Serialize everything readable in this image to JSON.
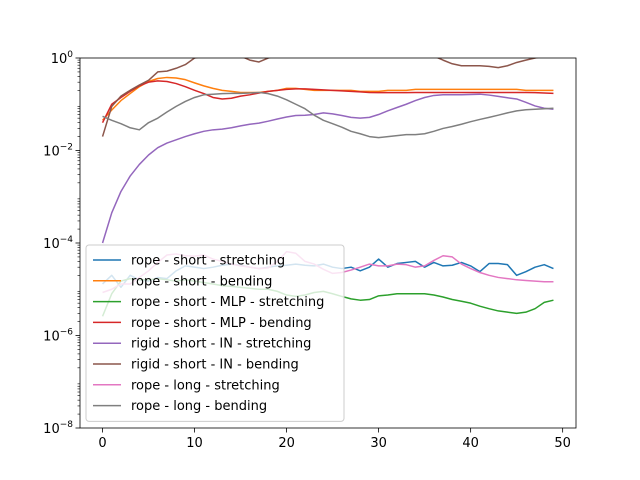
{
  "chart_data": {
    "type": "line",
    "title": "",
    "xlabel": "",
    "ylabel": "",
    "xlim": [
      -2.45,
      51.45
    ],
    "ylim": [
      1e-08,
      1
    ],
    "yscale": "log",
    "grid": false,
    "legend_position": "lower-left",
    "x_ticks": [
      0,
      10,
      20,
      30,
      40,
      50
    ],
    "x_tick_labels": [
      "0",
      "10",
      "20",
      "30",
      "40",
      "50"
    ],
    "y_ticks": [
      1e-08,
      1e-06,
      0.0001,
      0.01,
      1
    ],
    "y_tick_labels": [
      {
        "base": "10",
        "exp": "−8"
      },
      {
        "base": "10",
        "exp": "−6"
      },
      {
        "base": "10",
        "exp": "−4"
      },
      {
        "base": "10",
        "exp": "−2"
      },
      {
        "base": "10",
        "exp": "0"
      }
    ],
    "series": [
      {
        "name": "rope - short - stretching",
        "color": "#1f77b4",
        "values": [
          1.3e-05,
          2e-05,
          1.1e-05,
          2e-05,
          1.6e-05,
          1.5e-05,
          1.8e-05,
          1.7e-05,
          2.5e-05,
          3.2e-05,
          3e-05,
          2.8e-05,
          3e-05,
          3.3e-05,
          3.5e-05,
          3.3e-05,
          3e-05,
          2.8e-05,
          3e-05,
          3.2e-05,
          3.3e-05,
          3.5e-05,
          3.3e-05,
          3.2e-05,
          3.5e-05,
          3e-05,
          2.8e-05,
          3e-05,
          2.5e-05,
          3e-05,
          4.5e-05,
          3e-05,
          3.6e-05,
          3.8e-05,
          4e-05,
          3e-05,
          3.8e-05,
          3.2e-05,
          3.3e-05,
          3.8e-05,
          3.2e-05,
          2.4e-05,
          3.6e-05,
          3.6e-05,
          3.4e-05,
          2e-05,
          2.4e-05,
          3e-05,
          3.4e-05,
          2.8e-05
        ]
      },
      {
        "name": "rope - short - bending",
        "color": "#ff7f0e",
        "values": [
          0.045,
          0.075,
          0.12,
          0.17,
          0.24,
          0.31,
          0.36,
          0.38,
          0.37,
          0.34,
          0.29,
          0.25,
          0.22,
          0.2,
          0.19,
          0.18,
          0.18,
          0.18,
          0.19,
          0.2,
          0.22,
          0.22,
          0.21,
          0.2,
          0.2,
          0.2,
          0.2,
          0.2,
          0.19,
          0.19,
          0.19,
          0.2,
          0.2,
          0.2,
          0.21,
          0.21,
          0.21,
          0.21,
          0.21,
          0.21,
          0.21,
          0.21,
          0.21,
          0.21,
          0.21,
          0.21,
          0.2,
          0.2,
          0.2,
          0.2
        ]
      },
      {
        "name": "rope - short - MLP - stretching",
        "color": "#2ca02c",
        "values": [
          2.6e-06,
          8e-06,
          1.5e-05,
          1.7e-05,
          1.6e-05,
          1.6e-05,
          1.7e-05,
          1.6e-05,
          1.5e-05,
          1.6e-05,
          1.5e-05,
          1.4e-05,
          1.3e-05,
          1.2e-05,
          1.15e-05,
          1.1e-05,
          1.05e-05,
          1e-05,
          1e-05,
          9e-06,
          7.5e-06,
          7e-06,
          7.5e-06,
          8.5e-06,
          9e-06,
          8e-06,
          7e-06,
          6.2e-06,
          5.8e-06,
          6e-06,
          7.2e-06,
          7.5e-06,
          8e-06,
          8e-06,
          8e-06,
          8e-06,
          7.5e-06,
          6.8e-06,
          6e-06,
          5.5e-06,
          5e-06,
          4.3e-06,
          3.8e-06,
          3.4e-06,
          3.2e-06,
          3e-06,
          3.2e-06,
          3.8e-06,
          5.2e-06,
          5.8e-06
        ]
      },
      {
        "name": "rope - short - MLP - bending",
        "color": "#d62728",
        "values": [
          0.04,
          0.1,
          0.14,
          0.19,
          0.25,
          0.3,
          0.32,
          0.31,
          0.28,
          0.24,
          0.2,
          0.17,
          0.14,
          0.13,
          0.135,
          0.15,
          0.16,
          0.175,
          0.19,
          0.2,
          0.21,
          0.215,
          0.215,
          0.21,
          0.205,
          0.2,
          0.195,
          0.19,
          0.185,
          0.18,
          0.178,
          0.178,
          0.178,
          0.178,
          0.18,
          0.18,
          0.18,
          0.18,
          0.18,
          0.18,
          0.18,
          0.18,
          0.18,
          0.18,
          0.18,
          0.18,
          0.18,
          0.178,
          0.175,
          0.172
        ]
      },
      {
        "name": "rigid - short - IN - stretching",
        "color": "#9467bd",
        "values": [
          0.0001,
          0.00045,
          0.0013,
          0.0028,
          0.005,
          0.008,
          0.0115,
          0.0145,
          0.017,
          0.02,
          0.023,
          0.026,
          0.028,
          0.029,
          0.031,
          0.034,
          0.037,
          0.039,
          0.043,
          0.048,
          0.053,
          0.057,
          0.058,
          0.06,
          0.065,
          0.062,
          0.057,
          0.052,
          0.05,
          0.052,
          0.06,
          0.072,
          0.085,
          0.1,
          0.12,
          0.14,
          0.155,
          0.16,
          0.16,
          0.16,
          0.162,
          0.165,
          0.158,
          0.148,
          0.138,
          0.13,
          0.11,
          0.092,
          0.082,
          0.078
        ]
      },
      {
        "name": "rigid - short - IN - bending",
        "color": "#8c564b",
        "values": [
          0.02,
          0.09,
          0.15,
          0.2,
          0.26,
          0.33,
          0.5,
          0.52,
          0.6,
          0.72,
          1.0,
          1.1,
          1.3,
          1.25,
          1.2,
          1.1,
          0.9,
          0.82,
          1.0,
          1.15,
          1.2,
          1.1,
          1.05,
          1.05,
          1.1,
          1.2,
          1.3,
          1.25,
          1.2,
          1.3,
          1.4,
          1.5,
          1.5,
          1.4,
          1.3,
          1.2,
          1.1,
          0.9,
          0.75,
          0.68,
          0.68,
          0.68,
          0.66,
          0.62,
          0.68,
          0.8,
          0.9,
          1.0,
          1.1,
          1.2
        ]
      },
      {
        "name": "rope - long - stretching",
        "color": "#e377c2",
        "values": [
          8.5e-06,
          1e-05,
          1.3e-05,
          1.3e-05,
          1.8e-05,
          2.5e-05,
          3.8e-05,
          5.5e-05,
          5.8e-05,
          5.3e-05,
          5.2e-05,
          5.5e-05,
          4.5e-05,
          4e-05,
          3.5e-05,
          3.2e-05,
          3e-05,
          2.8e-05,
          2.9e-05,
          4e-05,
          6.5e-05,
          6e-05,
          4e-05,
          3.5e-05,
          2.7e-05,
          2.2e-05,
          2.3e-05,
          2.6e-05,
          3e-05,
          3.5e-05,
          3.2e-05,
          3.2e-05,
          3.5e-05,
          3.4e-05,
          3e-05,
          3.2e-05,
          4.2e-05,
          5.3e-05,
          5e-05,
          3.5e-05,
          2.8e-05,
          2.3e-05,
          2e-05,
          1.8e-05,
          1.7e-05,
          1.6e-05,
          1.55e-05,
          1.5e-05,
          1.45e-05,
          1.45e-05
        ]
      },
      {
        "name": "rope - long - bending",
        "color": "#7f7f7f",
        "values": [
          0.055,
          0.045,
          0.038,
          0.031,
          0.028,
          0.04,
          0.05,
          0.068,
          0.09,
          0.115,
          0.14,
          0.16,
          0.165,
          0.17,
          0.172,
          0.172,
          0.175,
          0.18,
          0.17,
          0.15,
          0.125,
          0.1,
          0.08,
          0.058,
          0.045,
          0.038,
          0.032,
          0.026,
          0.023,
          0.02,
          0.019,
          0.02,
          0.021,
          0.022,
          0.022,
          0.023,
          0.026,
          0.03,
          0.033,
          0.037,
          0.042,
          0.047,
          0.052,
          0.058,
          0.065,
          0.072,
          0.076,
          0.078,
          0.08,
          0.082
        ]
      }
    ]
  }
}
